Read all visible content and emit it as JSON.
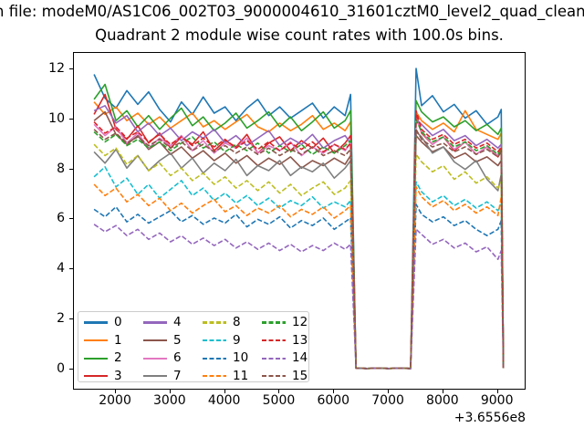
{
  "figure": {
    "background": "#ffffff",
    "suptitle": "n file: modeM0/AS1C06_002T03_9000004610_31601cztM0_level2_quad_clean",
    "axes_title": "Quadrant 2 module wise count rates with 100.0s bins."
  },
  "chart_data": {
    "type": "line",
    "title": "Quadrant 2 module wise count rates with 100.0s bins.",
    "xlabel": "",
    "ylabel": "",
    "grid": false,
    "legend_position": "lower left",
    "legend_columns": 4,
    "x_offset_text": "+3.6556e8",
    "x_ticks": [
      2000,
      3000,
      4000,
      5000,
      6000,
      7000,
      8000,
      9000
    ],
    "y_ticks": [
      0,
      2,
      4,
      6,
      8,
      10,
      12
    ],
    "xlim": [
      1230,
      9490
    ],
    "ylim": [
      -0.78,
      12.66
    ],
    "x": [
      1600,
      1800,
      2000,
      2200,
      2400,
      2600,
      2800,
      3000,
      3200,
      3400,
      3600,
      3800,
      4000,
      4200,
      4400,
      4600,
      4800,
      5000,
      5200,
      5400,
      5600,
      5800,
      6000,
      6200,
      6300,
      6400,
      6600,
      6800,
      7000,
      7200,
      7400,
      7500,
      7600,
      7800,
      8000,
      8200,
      8400,
      8600,
      8800,
      9000,
      9060,
      9100
    ],
    "series": [
      {
        "name": "0",
        "color": "#1f77b4",
        "style": "solid",
        "values": [
          11.8,
          10.85,
          10.45,
          11.15,
          10.6,
          11.1,
          10.4,
          9.9,
          10.7,
          10.2,
          10.9,
          10.25,
          10.5,
          9.95,
          10.45,
          10.8,
          10.15,
          10.5,
          10.05,
          10.35,
          10.65,
          10.05,
          10.5,
          10.15,
          11.0,
          0.04,
          0.03,
          0.04,
          0.03,
          0.04,
          0.03,
          12.04,
          10.55,
          10.95,
          10.3,
          10.6,
          10.05,
          10.35,
          9.8,
          10.1,
          10.4,
          0.05
        ]
      },
      {
        "name": "1",
        "color": "#ff7f0e",
        "style": "solid",
        "values": [
          10.7,
          10.2,
          10.5,
          9.95,
          10.25,
          9.8,
          10.1,
          9.65,
          9.95,
          10.25,
          9.7,
          9.95,
          9.6,
          9.9,
          10.2,
          9.7,
          9.5,
          9.85,
          9.55,
          9.8,
          10.15,
          9.6,
          9.85,
          9.55,
          9.9,
          0.04,
          0.03,
          0.04,
          0.03,
          0.04,
          0.03,
          10.3,
          9.95,
          9.6,
          9.85,
          9.5,
          10.35,
          9.6,
          9.4,
          9.2,
          9.45,
          0.05
        ]
      },
      {
        "name": "2",
        "color": "#2ca02c",
        "style": "solid",
        "values": [
          10.8,
          11.4,
          9.95,
          10.35,
          9.7,
          10.15,
          9.6,
          10.05,
          10.45,
          9.75,
          10.1,
          9.55,
          9.85,
          10.25,
          9.65,
          9.95,
          10.3,
          9.7,
          10.1,
          9.55,
          9.9,
          10.3,
          9.65,
          9.95,
          10.35,
          0.04,
          0.03,
          0.04,
          0.03,
          0.04,
          0.03,
          10.75,
          10.3,
          9.9,
          10.1,
          9.7,
          9.95,
          9.55,
          9.8,
          9.4,
          9.65,
          0.05
        ]
      },
      {
        "name": "3",
        "color": "#d62728",
        "style": "solid",
        "values": [
          10.2,
          11.0,
          9.6,
          9.2,
          9.75,
          9.05,
          9.45,
          8.85,
          9.3,
          9.0,
          9.5,
          8.75,
          9.15,
          8.9,
          9.4,
          8.65,
          9.05,
          9.3,
          8.75,
          9.15,
          8.85,
          9.25,
          8.65,
          9.05,
          9.35,
          0.04,
          0.03,
          0.04,
          0.03,
          0.04,
          0.03,
          10.2,
          9.45,
          9.0,
          9.3,
          8.75,
          9.1,
          8.6,
          8.9,
          8.5,
          8.75,
          0.05
        ]
      },
      {
        "name": "4",
        "color": "#9467bd",
        "style": "solid",
        "values": [
          10.35,
          10.55,
          9.85,
          10.15,
          9.5,
          9.85,
          9.35,
          9.65,
          9.15,
          9.5,
          9.25,
          9.6,
          9.05,
          9.35,
          8.95,
          9.25,
          9.55,
          8.95,
          9.25,
          9.0,
          9.4,
          8.85,
          9.15,
          9.35,
          9.05,
          0.04,
          0.03,
          0.04,
          0.03,
          0.04,
          0.03,
          10.0,
          9.8,
          9.35,
          9.6,
          9.15,
          9.35,
          8.95,
          9.2,
          8.85,
          9.0,
          0.05
        ]
      },
      {
        "name": "5",
        "color": "#8c564b",
        "style": "solid",
        "values": [
          9.95,
          10.3,
          9.4,
          9.0,
          9.35,
          8.8,
          9.1,
          8.6,
          8.9,
          8.45,
          8.75,
          8.35,
          8.65,
          8.25,
          8.55,
          8.15,
          8.45,
          8.2,
          8.5,
          8.05,
          8.35,
          8.15,
          8.45,
          8.2,
          8.55,
          0.04,
          0.03,
          0.04,
          0.03,
          0.04,
          0.03,
          9.35,
          9.1,
          8.7,
          8.9,
          8.45,
          8.65,
          8.3,
          8.5,
          8.15,
          8.35,
          0.05
        ]
      },
      {
        "name": "6",
        "color": "#e377c2",
        "style": "solid",
        "values": [
          9.8,
          9.35,
          9.7,
          9.05,
          9.45,
          8.85,
          9.25,
          8.95,
          9.35,
          8.75,
          9.15,
          8.65,
          9.05,
          8.85,
          9.25,
          8.65,
          8.95,
          8.75,
          9.1,
          8.55,
          8.9,
          8.65,
          9.0,
          8.75,
          9.05,
          0.04,
          0.03,
          0.04,
          0.03,
          0.04,
          0.03,
          10.05,
          9.5,
          9.0,
          9.3,
          8.8,
          9.1,
          8.6,
          8.9,
          8.55,
          8.8,
          0.05
        ]
      },
      {
        "name": "7",
        "color": "#7f7f7f",
        "style": "solid",
        "values": [
          8.7,
          8.25,
          8.8,
          8.05,
          8.55,
          7.95,
          8.35,
          8.65,
          8.05,
          8.45,
          7.85,
          8.25,
          7.95,
          8.4,
          7.75,
          8.15,
          7.95,
          8.35,
          7.75,
          8.1,
          7.9,
          8.25,
          7.65,
          8.05,
          8.35,
          0.04,
          0.03,
          0.04,
          0.03,
          0.04,
          0.03,
          9.5,
          9.3,
          8.65,
          8.9,
          8.3,
          8.0,
          8.35,
          7.6,
          7.15,
          7.8,
          0.05
        ]
      },
      {
        "name": "8",
        "color": "#bcbd22",
        "style": "dashed",
        "values": [
          9.0,
          8.55,
          8.85,
          8.2,
          8.55,
          7.95,
          8.25,
          7.75,
          8.05,
          7.55,
          7.85,
          7.4,
          7.7,
          7.25,
          7.55,
          7.15,
          7.5,
          7.05,
          7.4,
          6.95,
          7.25,
          7.5,
          7.0,
          7.25,
          7.55,
          0.04,
          0.03,
          0.04,
          0.03,
          0.04,
          0.03,
          8.6,
          8.3,
          7.9,
          8.15,
          7.6,
          7.9,
          7.45,
          7.7,
          7.25,
          7.5,
          0.05
        ]
      },
      {
        "name": "9",
        "color": "#17becf",
        "style": "dashed",
        "values": [
          7.7,
          8.1,
          7.3,
          7.65,
          7.0,
          7.4,
          6.85,
          7.2,
          7.55,
          6.95,
          7.25,
          6.75,
          7.05,
          6.65,
          6.95,
          6.55,
          6.85,
          6.45,
          6.75,
          6.55,
          6.9,
          6.45,
          6.7,
          6.5,
          6.75,
          0.04,
          0.03,
          0.04,
          0.03,
          0.04,
          0.03,
          7.5,
          7.1,
          6.7,
          6.95,
          6.55,
          6.8,
          6.45,
          6.7,
          6.35,
          6.6,
          0.05
        ]
      },
      {
        "name": "10",
        "color": "#1f77b4",
        "style": "dashed",
        "values": [
          6.4,
          6.1,
          6.5,
          5.9,
          6.2,
          5.85,
          6.1,
          6.35,
          5.9,
          6.15,
          5.8,
          6.05,
          5.85,
          6.2,
          5.7,
          6.0,
          5.8,
          6.1,
          5.65,
          5.95,
          5.75,
          6.05,
          5.6,
          5.9,
          6.05,
          0.04,
          0.03,
          0.04,
          0.03,
          0.04,
          0.03,
          6.6,
          6.2,
          5.9,
          6.1,
          5.75,
          5.95,
          5.6,
          5.35,
          5.6,
          5.95,
          0.05
        ]
      },
      {
        "name": "11",
        "color": "#ff7f0e",
        "style": "dashed",
        "values": [
          7.4,
          6.95,
          7.25,
          6.7,
          7.0,
          6.55,
          6.85,
          6.35,
          6.65,
          6.25,
          6.55,
          6.8,
          6.3,
          6.55,
          6.15,
          6.45,
          6.25,
          6.55,
          6.1,
          6.4,
          6.2,
          6.5,
          6.05,
          6.35,
          6.55,
          0.04,
          0.03,
          0.04,
          0.03,
          0.04,
          0.03,
          7.3,
          6.9,
          6.5,
          6.75,
          6.35,
          6.6,
          6.25,
          6.5,
          6.15,
          6.9,
          0.05
        ]
      },
      {
        "name": "12",
        "color": "#2ca02c",
        "style": "dashed",
        "values": [
          9.5,
          9.1,
          9.4,
          8.95,
          9.2,
          8.85,
          9.1,
          8.75,
          9.05,
          9.3,
          8.85,
          9.1,
          8.7,
          9.0,
          8.75,
          9.05,
          8.65,
          8.95,
          8.7,
          9.0,
          8.6,
          8.9,
          8.65,
          8.95,
          9.15,
          0.04,
          0.03,
          0.04,
          0.03,
          0.04,
          0.03,
          10.0,
          9.5,
          9.1,
          9.3,
          8.9,
          9.1,
          8.75,
          8.95,
          8.6,
          8.8,
          0.05
        ]
      },
      {
        "name": "13",
        "color": "#d62728",
        "style": "dashed",
        "values": [
          9.9,
          9.45,
          9.7,
          9.25,
          9.5,
          9.1,
          9.4,
          9.0,
          9.3,
          8.95,
          9.25,
          8.9,
          9.2,
          8.85,
          9.15,
          8.8,
          9.1,
          8.75,
          9.05,
          8.8,
          9.1,
          8.7,
          9.0,
          8.8,
          9.05,
          0.04,
          0.03,
          0.04,
          0.03,
          0.04,
          0.03,
          10.35,
          9.6,
          9.2,
          9.4,
          9.0,
          9.2,
          8.85,
          9.05,
          8.7,
          8.9,
          0.05
        ]
      },
      {
        "name": "14",
        "color": "#9467bd",
        "style": "dashed",
        "values": [
          5.8,
          5.5,
          5.75,
          5.35,
          5.6,
          5.2,
          5.45,
          5.1,
          5.35,
          5.0,
          5.25,
          4.95,
          5.2,
          4.85,
          5.1,
          4.8,
          5.05,
          4.75,
          5.0,
          4.7,
          4.95,
          4.75,
          5.05,
          4.8,
          5.0,
          0.04,
          0.03,
          0.04,
          0.03,
          0.04,
          0.03,
          5.6,
          5.4,
          5.0,
          5.2,
          4.85,
          5.05,
          4.7,
          4.9,
          4.4,
          4.75,
          0.05
        ]
      },
      {
        "name": "15",
        "color": "#8c564b",
        "style": "dashed",
        "values": [
          9.6,
          9.2,
          9.45,
          9.05,
          9.3,
          8.95,
          9.2,
          8.85,
          9.1,
          8.75,
          9.0,
          8.7,
          8.95,
          8.65,
          8.9,
          8.6,
          8.85,
          8.55,
          8.8,
          8.6,
          8.9,
          8.55,
          8.75,
          8.55,
          8.8,
          0.04,
          0.03,
          0.04,
          0.03,
          0.04,
          0.03,
          9.6,
          9.2,
          8.9,
          9.05,
          8.7,
          8.9,
          8.6,
          8.8,
          8.5,
          8.7,
          0.05
        ]
      }
    ]
  }
}
